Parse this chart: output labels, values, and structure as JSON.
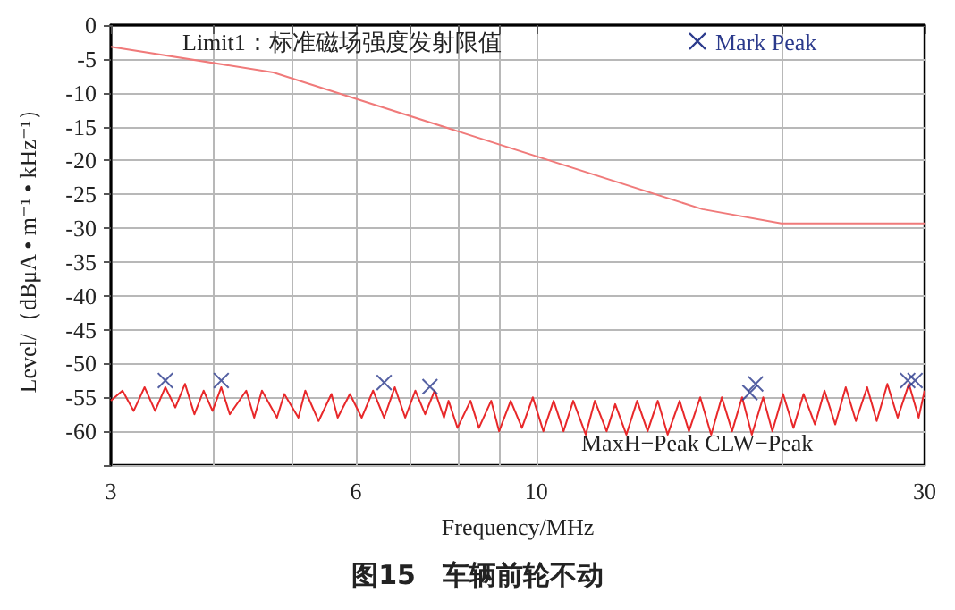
{
  "chart_data": {
    "type": "line",
    "xlabel": "Frequency/MHz",
    "ylabel": "Level/（dBμA • m⁻¹ • kHz⁻¹）",
    "annotations": [
      "图15　车辆前轮不动"
    ],
    "log": "x",
    "xlim": [
      3,
      30
    ],
    "xticks": [
      3,
      {
        "value": 4,
        "label": null
      },
      {
        "value": 5,
        "label": null
      },
      6,
      {
        "value": 7,
        "label": null
      },
      {
        "value": 8,
        "label": null
      },
      {
        "value": 9,
        "label": null
      },
      10,
      {
        "value": 20,
        "label": null
      },
      30
    ],
    "ylim": [
      -65,
      0
    ],
    "yticks": [
      0,
      -5,
      -10,
      -15,
      -20,
      -25,
      -30,
      -35,
      -40,
      -45,
      -50,
      -55,
      -60,
      {
        "value": -65,
        "label": null
      }
    ],
    "grid": true,
    "legend": "top",
    "series": [
      {
        "name": "MaxH−Peak CLW−Peak",
        "color": "#e8282a",
        "marker": "none",
        "x": [
          3.0,
          3.1,
          3.2,
          3.3,
          3.4,
          3.5,
          3.6,
          3.7,
          3.8,
          3.9,
          4.0,
          4.1,
          4.2,
          4.4,
          4.5,
          4.6,
          4.8,
          4.9,
          5.1,
          5.2,
          5.4,
          5.6,
          5.7,
          5.9,
          6.1,
          6.3,
          6.5,
          6.7,
          6.9,
          7.1,
          7.3,
          7.5,
          7.7,
          7.8,
          8.0,
          8.3,
          8.5,
          8.8,
          9.0,
          9.3,
          9.6,
          9.9,
          10.2,
          10.5,
          10.8,
          11.1,
          11.5,
          11.8,
          12.2,
          12.5,
          12.9,
          13.3,
          13.7,
          14.1,
          14.5,
          15,
          15.4,
          15.9,
          16.4,
          16.9,
          17.4,
          17.9,
          18.4,
          19,
          19.5,
          20.1,
          20.7,
          21.3,
          22,
          22.6,
          23.3,
          24,
          24.7,
          25.5,
          26.2,
          27,
          27.8,
          28.7,
          29.5,
          30
        ],
        "values": [
          -55.5,
          -54,
          -57,
          -53.5,
          -57,
          -53.5,
          -56.5,
          -53,
          -57.5,
          -54,
          -57,
          -53.5,
          -57.5,
          -54,
          -58,
          -54,
          -58,
          -54.5,
          -58,
          -54,
          -58.5,
          -54.5,
          -58,
          -54.5,
          -58,
          -54,
          -58,
          -53.5,
          -58,
          -54,
          -57.5,
          -54,
          -58,
          -55.5,
          -59.5,
          -55.5,
          -59.5,
          -55.5,
          -60,
          -55.5,
          -59.5,
          -55,
          -60,
          -55.5,
          -60,
          -55.5,
          -60.5,
          -55.5,
          -60,
          -56,
          -60.5,
          -55.5,
          -60,
          -55.5,
          -60.5,
          -55.5,
          -60,
          -55,
          -60.5,
          -55,
          -60,
          -55,
          -60.5,
          -55,
          -60,
          -54.5,
          -59.5,
          -54.5,
          -59,
          -54,
          -59,
          -53.5,
          -58.5,
          -53.5,
          -58.5,
          -53,
          -58,
          -53,
          -58,
          -54
        ]
      },
      {
        "name": "Limit1：标准磁场强度发射限值",
        "color": "#f07a7a",
        "marker": "none",
        "x": [
          3,
          4.75,
          16,
          20,
          30
        ],
        "values": [
          -3.2,
          -7,
          -27.2,
          -29.3,
          -29.3
        ]
      },
      {
        "name": "Mark Peak",
        "type": "scatter",
        "color": "#2b3a8c",
        "marker": "cross",
        "x": [
          3.5,
          4.1,
          6.5,
          7.4,
          18.3,
          18.6,
          28.6,
          29.2
        ],
        "values": [
          -52.5,
          -52.5,
          -52.8,
          -53.4,
          -54.3,
          -53,
          -52.5,
          -52.5
        ]
      }
    ]
  }
}
